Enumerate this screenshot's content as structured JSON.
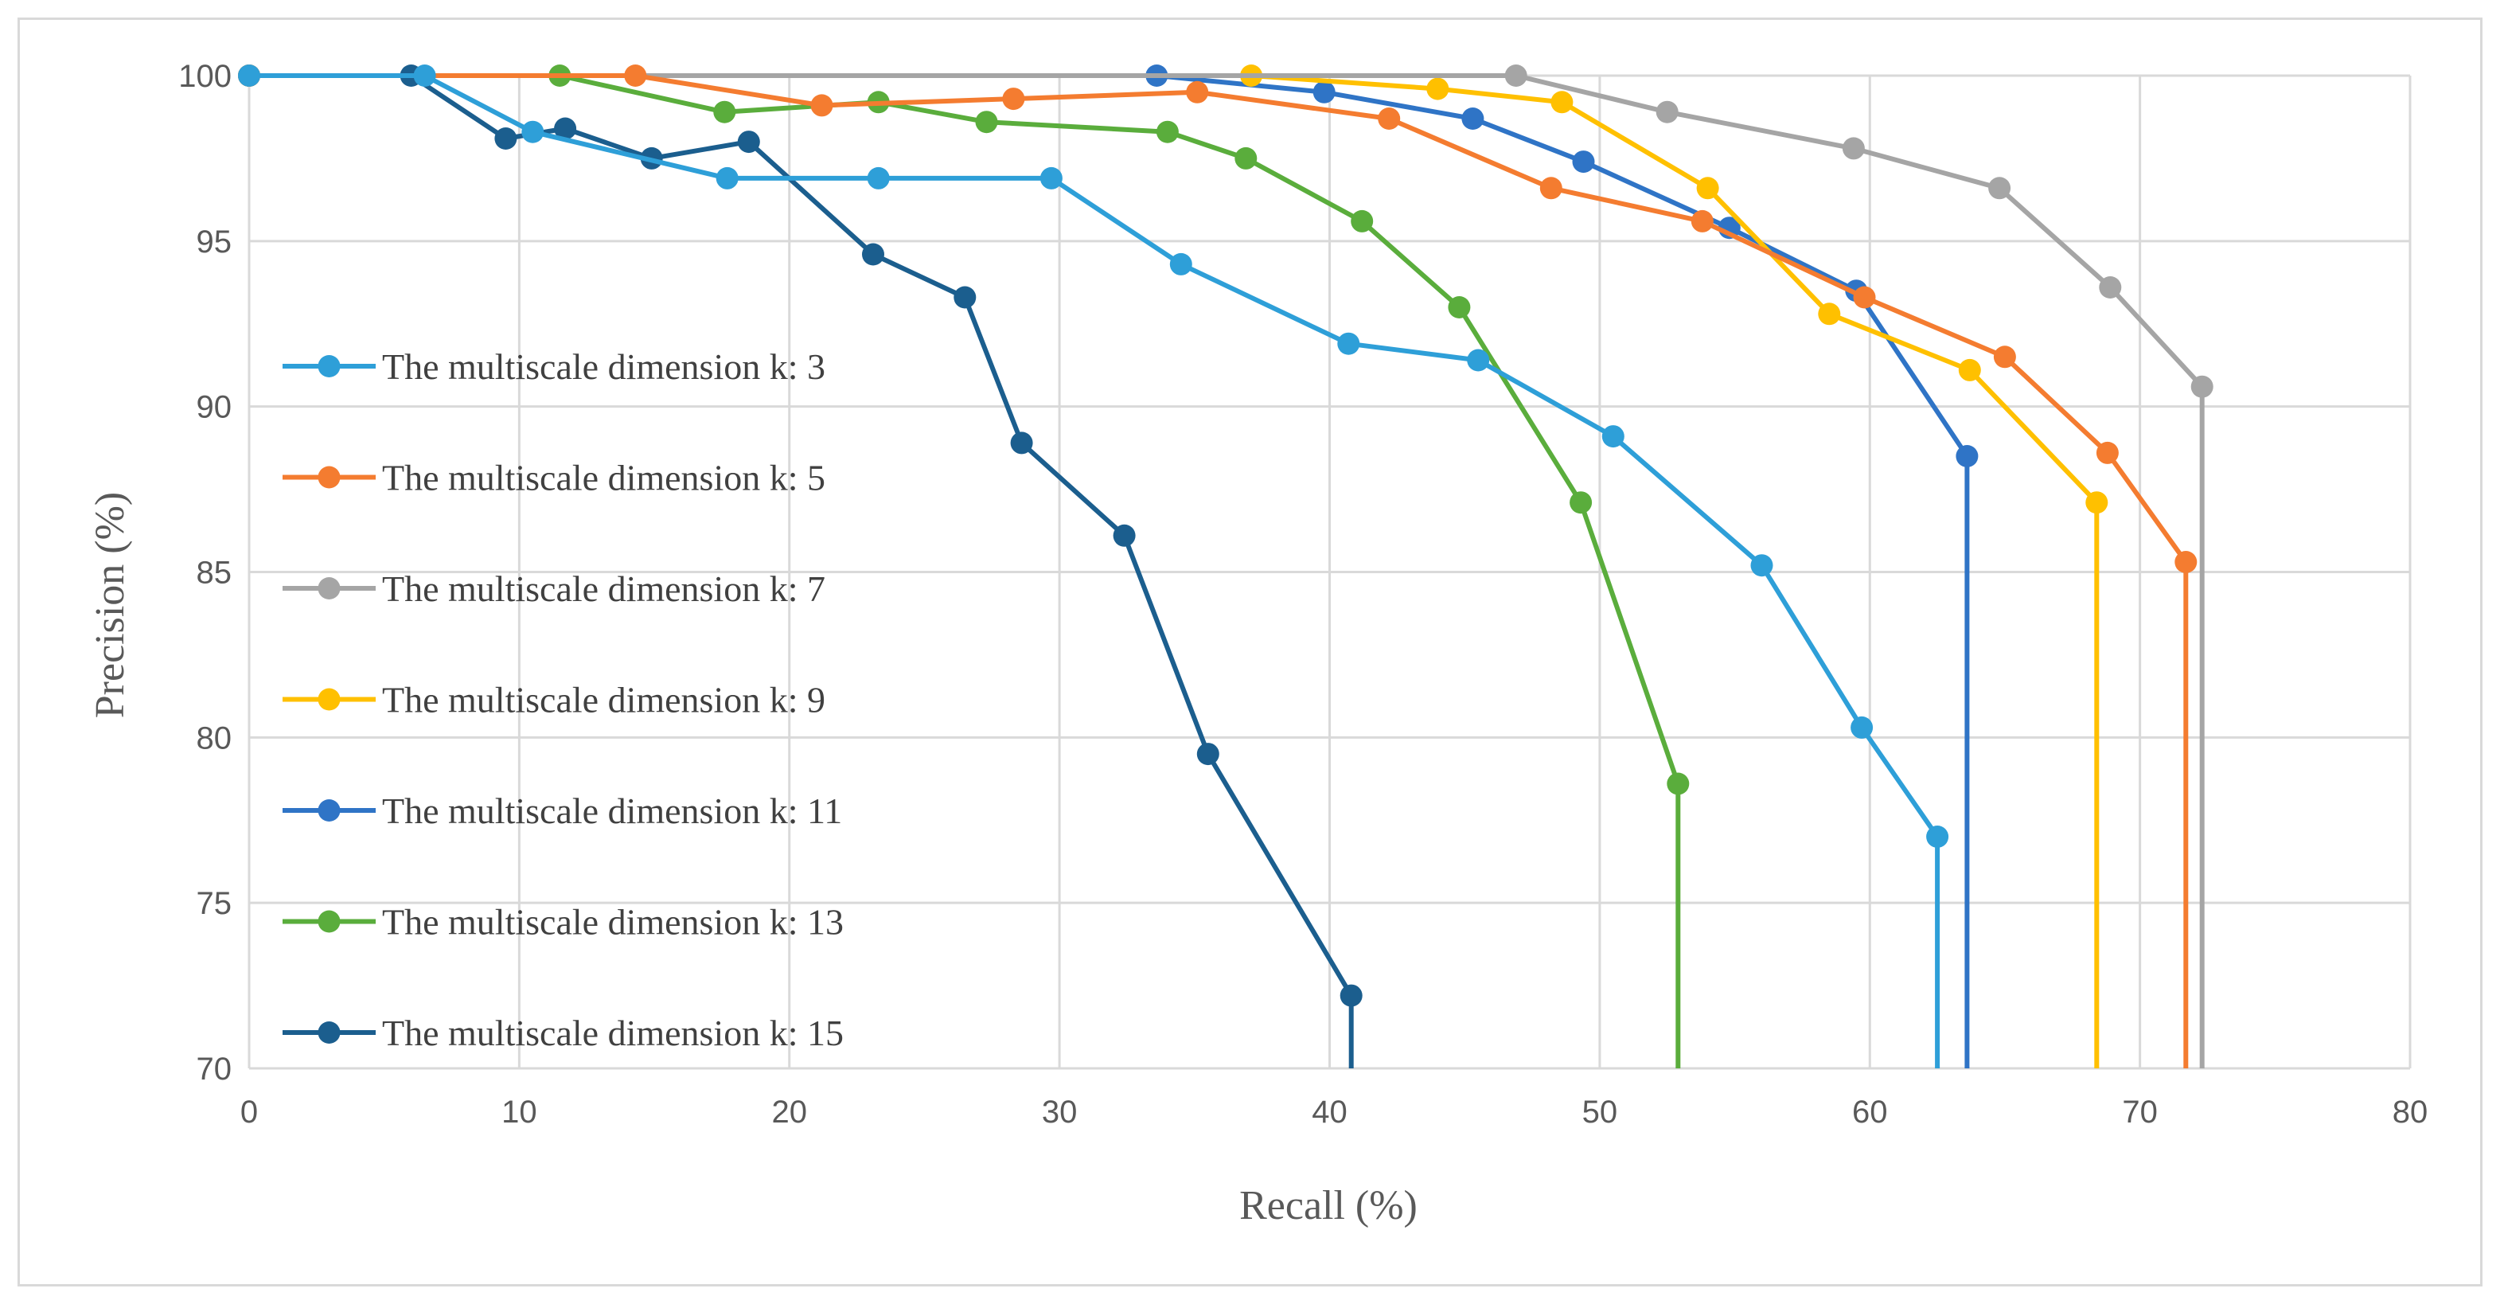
{
  "chart_data": {
    "type": "line",
    "title": "",
    "xlabel": "Recall (%)",
    "ylabel": "Precision (%)",
    "xlim": [
      0,
      80
    ],
    "ylim": [
      70,
      100
    ],
    "xticks": [
      0,
      10,
      20,
      30,
      40,
      50,
      60,
      70,
      80
    ],
    "yticks": [
      70,
      75,
      80,
      85,
      90,
      95,
      100
    ],
    "grid": true,
    "legend_position": "left",
    "series": [
      {
        "name": "The multiscale dimension k: 3",
        "color": "#2e9fd8",
        "points": [
          [
            0,
            100
          ],
          [
            6.5,
            100
          ],
          [
            10.5,
            98.3
          ],
          [
            17.7,
            96.9
          ],
          [
            23.3,
            96.9
          ],
          [
            29.7,
            96.9
          ],
          [
            34.5,
            94.3
          ],
          [
            40.7,
            91.9
          ],
          [
            45.5,
            91.4
          ],
          [
            50.5,
            89.1
          ],
          [
            56,
            85.2
          ],
          [
            59.7,
            80.3
          ],
          [
            62.5,
            77
          ]
        ],
        "drop_to": 70
      },
      {
        "name": "The multiscale dimension k: 5",
        "color": "#f47c30",
        "points": [
          [
            0,
            100
          ],
          [
            14.3,
            100
          ],
          [
            21.2,
            99.1
          ],
          [
            28.3,
            99.3
          ],
          [
            35.1,
            99.5
          ],
          [
            42.2,
            98.7
          ],
          [
            48.2,
            96.6
          ],
          [
            53.8,
            95.6
          ],
          [
            59.8,
            93.3
          ],
          [
            65,
            91.5
          ],
          [
            68.8,
            88.6
          ],
          [
            71.7,
            85.3
          ]
        ],
        "drop_to": 70
      },
      {
        "name": "The multiscale dimension k: 7",
        "color": "#a5a5a5",
        "points": [
          [
            0,
            100
          ],
          [
            46.9,
            100
          ],
          [
            52.5,
            98.9
          ],
          [
            59.4,
            97.8
          ],
          [
            64.8,
            96.6
          ],
          [
            68.9,
            93.6
          ],
          [
            72.3,
            90.6
          ]
        ],
        "drop_to": 70
      },
      {
        "name": "The multiscale dimension k: 9",
        "color": "#ffc000",
        "points": [
          [
            0,
            100
          ],
          [
            37.1,
            100
          ],
          [
            44,
            99.6
          ],
          [
            48.6,
            99.2
          ],
          [
            54,
            96.6
          ],
          [
            58.5,
            92.8
          ],
          [
            63.7,
            91.1
          ],
          [
            68.4,
            87.1
          ]
        ],
        "drop_to": 70
      },
      {
        "name": "The multiscale dimension k: 11",
        "color": "#2f74c6",
        "points": [
          [
            0,
            100
          ],
          [
            33.6,
            100
          ],
          [
            39.8,
            99.5
          ],
          [
            45.3,
            98.7
          ],
          [
            49.4,
            97.4
          ],
          [
            54.8,
            95.4
          ],
          [
            59.5,
            93.5
          ],
          [
            63.6,
            88.5
          ]
        ],
        "drop_to": 70
      },
      {
        "name": "The multiscale dimension k: 13",
        "color": "#5aad3c",
        "points": [
          [
            0,
            100
          ],
          [
            11.5,
            100
          ],
          [
            17.6,
            98.9
          ],
          [
            23.3,
            99.2
          ],
          [
            27.3,
            98.6
          ],
          [
            34,
            98.3
          ],
          [
            36.9,
            97.5
          ],
          [
            41.2,
            95.6
          ],
          [
            44.8,
            93
          ],
          [
            49.3,
            87.1
          ],
          [
            52.9,
            78.6
          ]
        ],
        "drop_to": 70
      },
      {
        "name": "The multiscale dimension k: 15",
        "color": "#1b5e8e",
        "points": [
          [
            0,
            100
          ],
          [
            6,
            100
          ],
          [
            9.5,
            98.1
          ],
          [
            11.7,
            98.4
          ],
          [
            14.9,
            97.5
          ],
          [
            18.5,
            98
          ],
          [
            23.1,
            94.6
          ],
          [
            26.5,
            93.3
          ],
          [
            28.6,
            88.9
          ],
          [
            32.4,
            86.1
          ],
          [
            35.5,
            79.5
          ],
          [
            40.8,
            72.2
          ]
        ],
        "drop_to": 70
      }
    ]
  }
}
